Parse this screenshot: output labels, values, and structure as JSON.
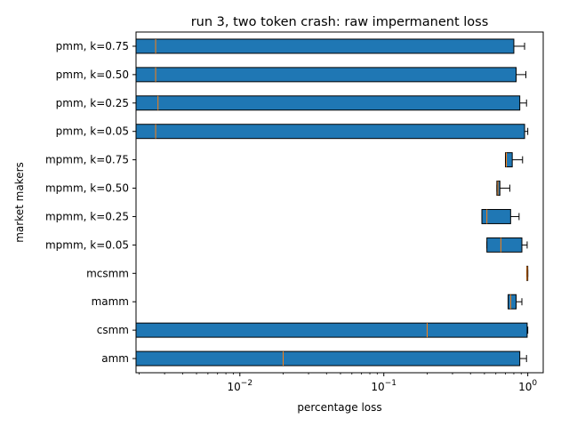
{
  "chart_data": {
    "type": "boxplot",
    "orientation": "horizontal",
    "title": "run 3, two token crash: raw impermanent loss",
    "xlabel": "percentage loss",
    "ylabel": "market makers",
    "xscale": "log",
    "xlim": [
      0.0019,
      1.28
    ],
    "xticks": [
      {
        "value": 0.01,
        "base": "10",
        "exp": "−2"
      },
      {
        "value": 0.1,
        "base": "10",
        "exp": "−1"
      },
      {
        "value": 1,
        "base": "10",
        "exp": "0"
      }
    ],
    "categories": [
      "pmm, k=0.75",
      "pmm, k=0.50",
      "pmm, k=0.25",
      "pmm, k=0.05",
      "mpmm, k=0.75",
      "mpmm, k=0.50",
      "mpmm, k=0.25",
      "mpmm, k=0.05",
      "mcsmm",
      "mamm",
      "csmm",
      "amm"
    ],
    "boxes": [
      {
        "q1": 0.0019,
        "median": 0.0026,
        "q3": 0.8,
        "whisker_low": 0.0019,
        "whisker_high": 0.95
      },
      {
        "q1": 0.0019,
        "median": 0.0026,
        "q3": 0.83,
        "whisker_low": 0.0019,
        "whisker_high": 0.97
      },
      {
        "q1": 0.0019,
        "median": 0.0027,
        "q3": 0.88,
        "whisker_low": 0.0019,
        "whisker_high": 0.98
      },
      {
        "q1": 0.0019,
        "median": 0.0026,
        "q3": 0.95,
        "whisker_low": 0.0019,
        "whisker_high": 1.0
      },
      {
        "q1": 0.7,
        "median": 0.71,
        "q3": 0.78,
        "whisker_low": 0.7,
        "whisker_high": 0.92
      },
      {
        "q1": 0.61,
        "median": 0.62,
        "q3": 0.64,
        "whisker_low": 0.61,
        "whisker_high": 0.75
      },
      {
        "q1": 0.48,
        "median": 0.52,
        "q3": 0.76,
        "whisker_low": 0.48,
        "whisker_high": 0.87
      },
      {
        "q1": 0.52,
        "median": 0.65,
        "q3": 0.91,
        "whisker_low": 0.52,
        "whisker_high": 0.99
      },
      {
        "q1": 0.985,
        "median": 0.99,
        "q3": 1.0,
        "whisker_low": 0.985,
        "whisker_high": 1.0
      },
      {
        "q1": 0.73,
        "median": 0.76,
        "q3": 0.83,
        "whisker_low": 0.73,
        "whisker_high": 0.91
      },
      {
        "q1": 0.0019,
        "median": 0.2,
        "q3": 0.99,
        "whisker_low": 0.0019,
        "whisker_high": 1.0
      },
      {
        "q1": 0.0019,
        "median": 0.02,
        "q3": 0.88,
        "whisker_low": 0.0019,
        "whisker_high": 0.98
      }
    ],
    "grid": false,
    "colors": {
      "box_fill": "#1f77b4",
      "median_line": "#ff7f0e",
      "edge": "#000000"
    }
  }
}
